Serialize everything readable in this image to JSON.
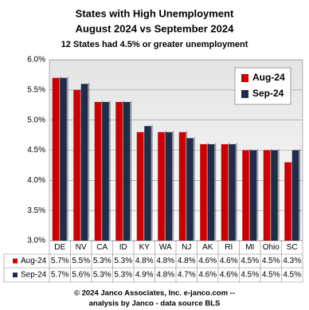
{
  "chart_data": {
    "type": "bar",
    "title": "States with High Unemployment",
    "subtitle": "August 2024 vs September 2024",
    "annotation": "12 States had 4.5% or greater unemployment",
    "footer": [
      "© 2024 Janco Associates, Inc. e-janco.com --",
      "analysis by Janco - data source BLS"
    ],
    "categories": [
      "DE",
      "NV",
      "CA",
      "ID",
      "KY",
      "WA",
      "NJ",
      "AK",
      "RI",
      "MI",
      "Ohio",
      "SC"
    ],
    "series": [
      {
        "name": "Aug-24",
        "color": "#cc0000",
        "values": [
          5.7,
          5.5,
          5.3,
          5.3,
          4.8,
          4.8,
          4.8,
          4.6,
          4.6,
          4.5,
          4.5,
          4.3
        ],
        "value_labels": [
          "5.7%",
          "5.5%",
          "5.3%",
          "5.3%",
          "4.8%",
          "4.8%",
          "4.8%",
          "4.6%",
          "4.6%",
          "4.5%",
          "4.5%",
          "4.3%"
        ]
      },
      {
        "name": "Sep-24",
        "color": "#1f2d4a",
        "values": [
          5.7,
          5.6,
          5.3,
          5.3,
          4.9,
          4.8,
          4.7,
          4.6,
          4.6,
          4.5,
          4.5,
          4.5
        ],
        "value_labels": [
          "5.7%",
          "5.6%",
          "5.3%",
          "5.3%",
          "4.9%",
          "4.8%",
          "4.7%",
          "4.6%",
          "4.6%",
          "4.5%",
          "4.5%",
          "4.5%"
        ]
      }
    ],
    "ylim": [
      3,
      6
    ],
    "yticks": [
      {
        "value": 3,
        "label": "3.0%"
      },
      {
        "value": 3.5,
        "label": "3.5%"
      },
      {
        "value": 4,
        "label": "4.0%"
      },
      {
        "value": 4.5,
        "label": "4.5%"
      },
      {
        "value": 5,
        "label": "5.0%"
      },
      {
        "value": 5.5,
        "label": "5.5%"
      },
      {
        "value": 6,
        "label": "6.0%"
      }
    ],
    "grid": true,
    "legend": "upper right"
  }
}
